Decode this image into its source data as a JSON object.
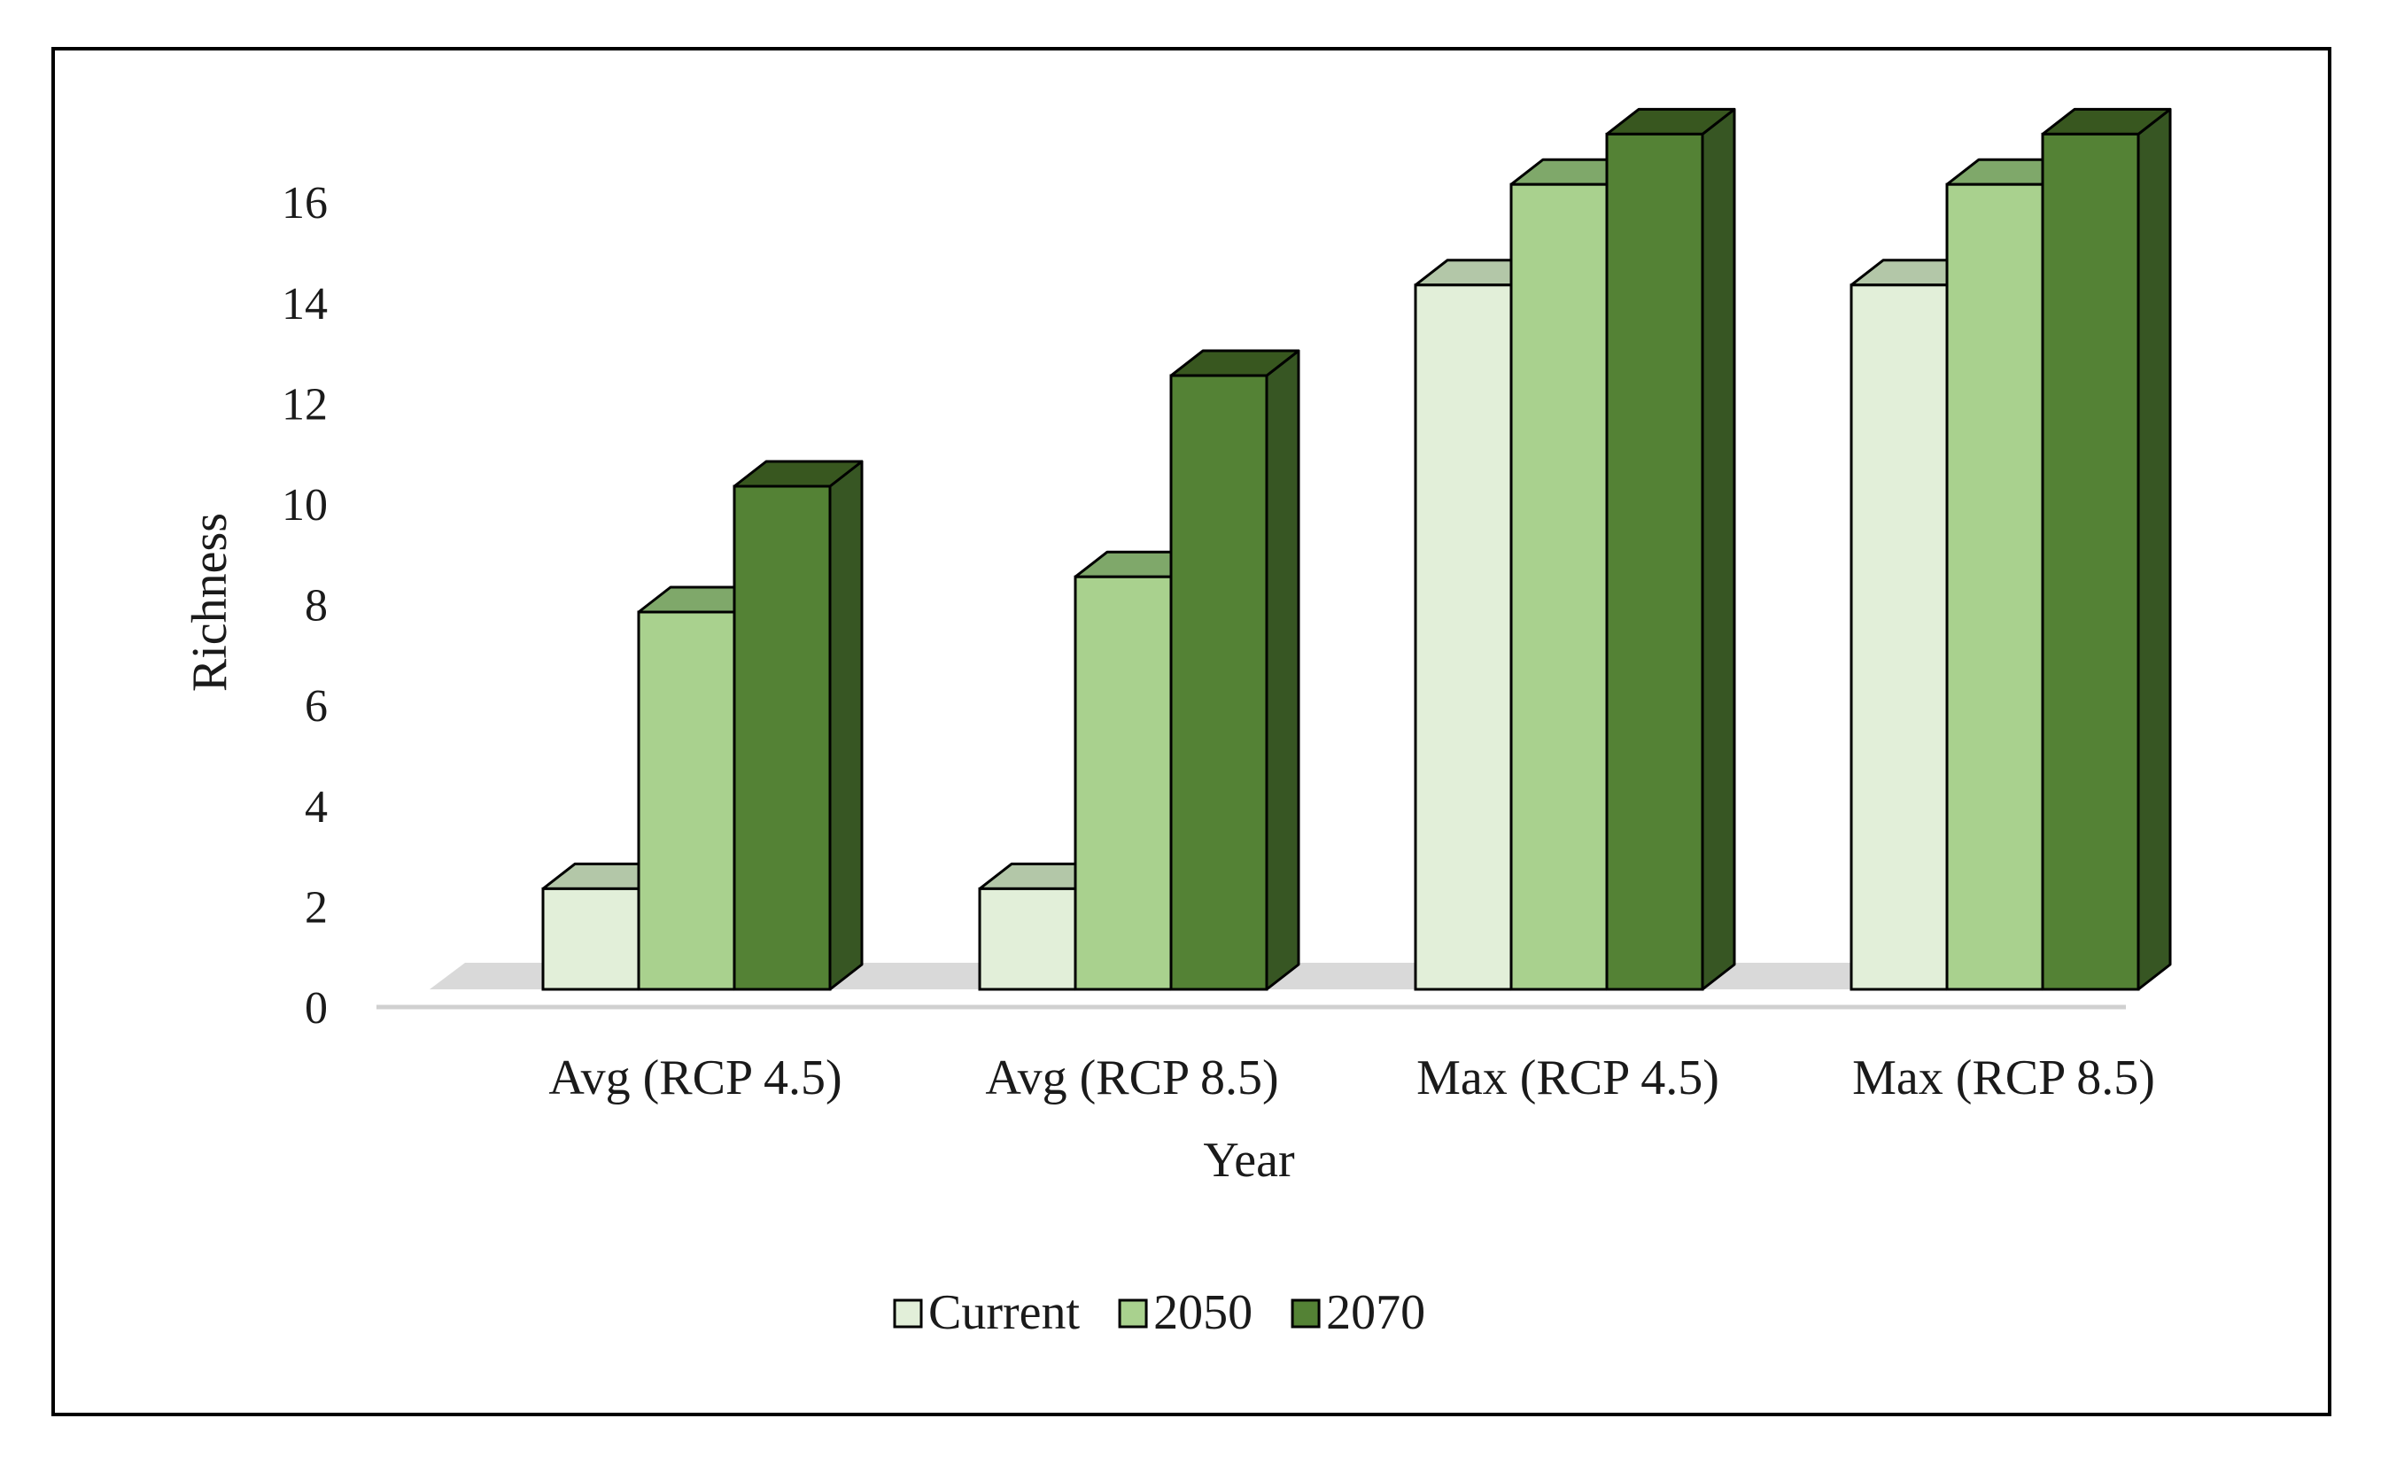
{
  "chart_data": {
    "type": "bar",
    "title": "",
    "xlabel": "Year",
    "ylabel": "Richness",
    "ylim": [
      0,
      16
    ],
    "yticks": [
      0,
      2,
      4,
      6,
      8,
      10,
      12,
      14,
      16
    ],
    "categories": [
      "Avg (RCP 4.5)",
      "Avg (RCP 8.5)",
      "Max (RCP 4.5)",
      "Max (RCP 8.5)"
    ],
    "series": [
      {
        "name": "Current",
        "values": [
          2,
          2,
          14,
          14
        ],
        "color": "#e2efd9",
        "top_color": "#b3c7a8",
        "side_color": "#a9bda0"
      },
      {
        "name": "2050",
        "values": [
          7.5,
          8.2,
          16,
          16
        ],
        "color": "#a9d18e",
        "top_color": "#7fa86a",
        "side_color": "#6e9a5a"
      },
      {
        "name": "2070",
        "values": [
          10,
          12.2,
          17,
          17
        ],
        "color": "#548235",
        "top_color": "#38571f",
        "side_color": "#375623"
      }
    ],
    "legend_position": "bottom",
    "grid": false,
    "style": "3d-clustered-column"
  }
}
